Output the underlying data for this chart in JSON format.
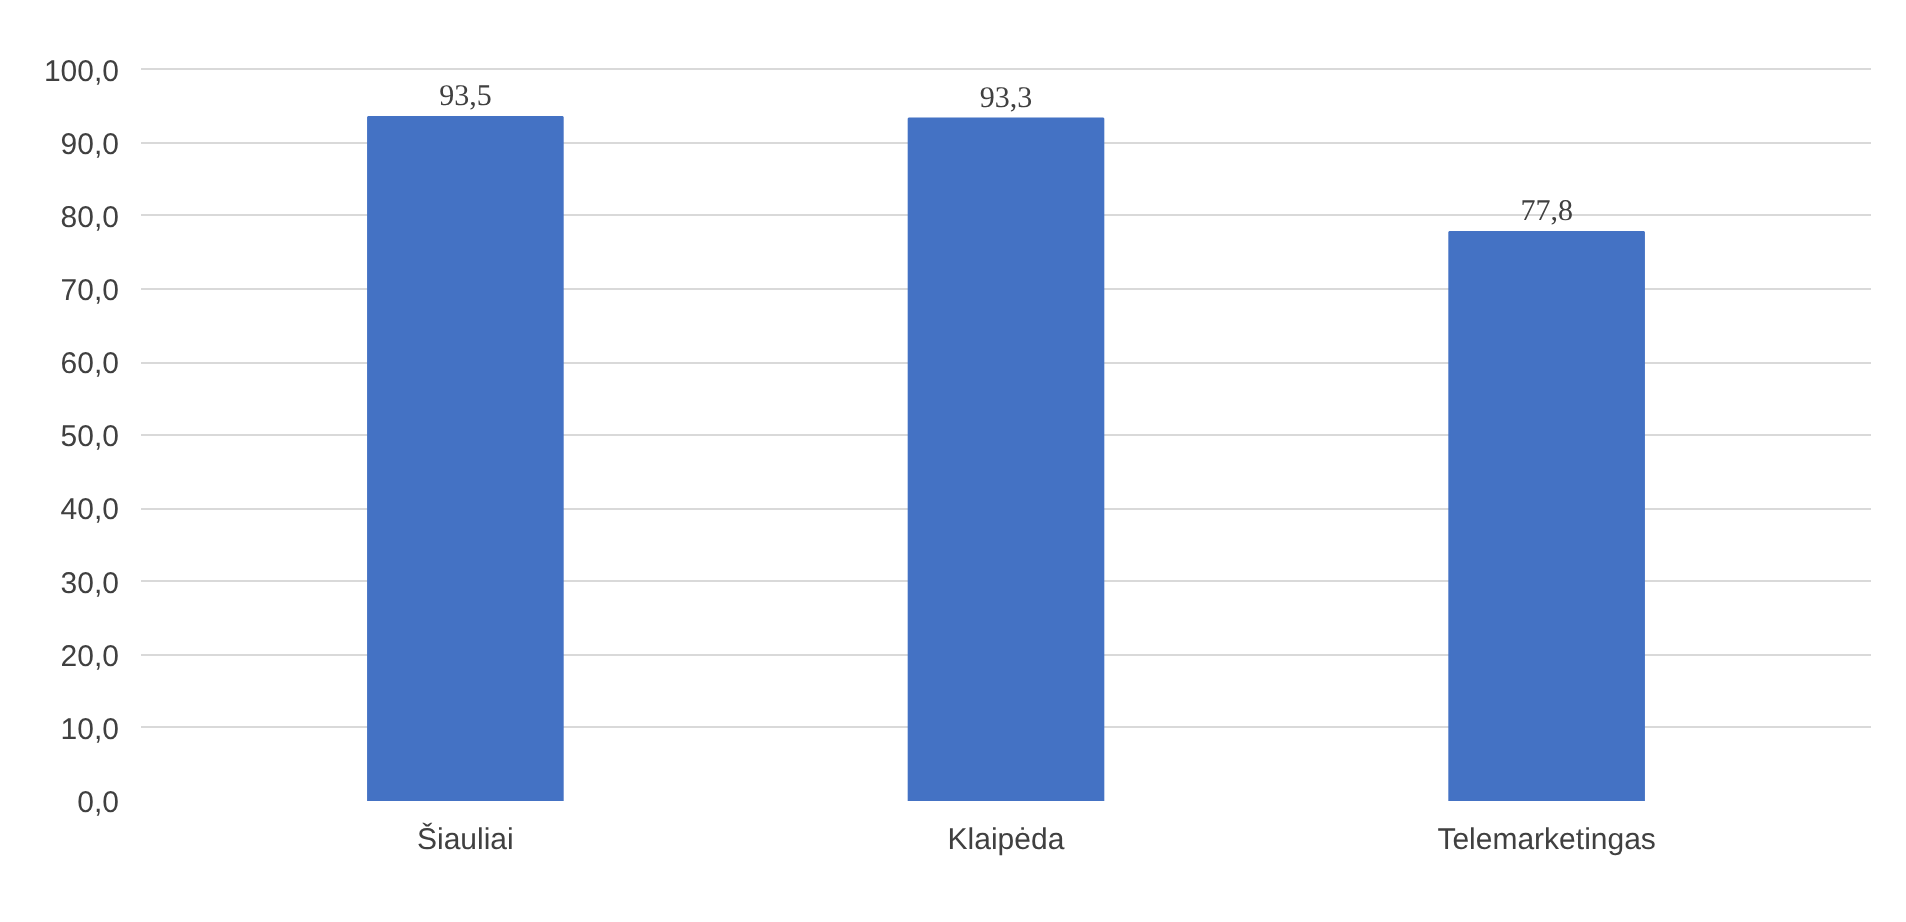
{
  "chart_data": {
    "type": "bar",
    "categories": [
      "Šiauliai",
      "Klaipėda",
      "Telemarketingas"
    ],
    "values": [
      93.5,
      93.3,
      77.8
    ],
    "value_labels": [
      "93,5",
      "93,3",
      "77,8"
    ],
    "color": "#4472c4",
    "ylim": [
      0,
      100
    ],
    "yticks": [
      {
        "value": 0,
        "label": "0,0"
      },
      {
        "value": 10,
        "label": "10,0"
      },
      {
        "value": 20,
        "label": "20,0"
      },
      {
        "value": 30,
        "label": "30,0"
      },
      {
        "value": 40,
        "label": "40,0"
      },
      {
        "value": 50,
        "label": "50,0"
      },
      {
        "value": 60,
        "label": "60,0"
      },
      {
        "value": 70,
        "label": "70,0"
      },
      {
        "value": 80,
        "label": "80,0"
      },
      {
        "value": 90,
        "label": "90,0"
      },
      {
        "value": 100,
        "label": "100,0"
      }
    ],
    "grid": "y"
  }
}
